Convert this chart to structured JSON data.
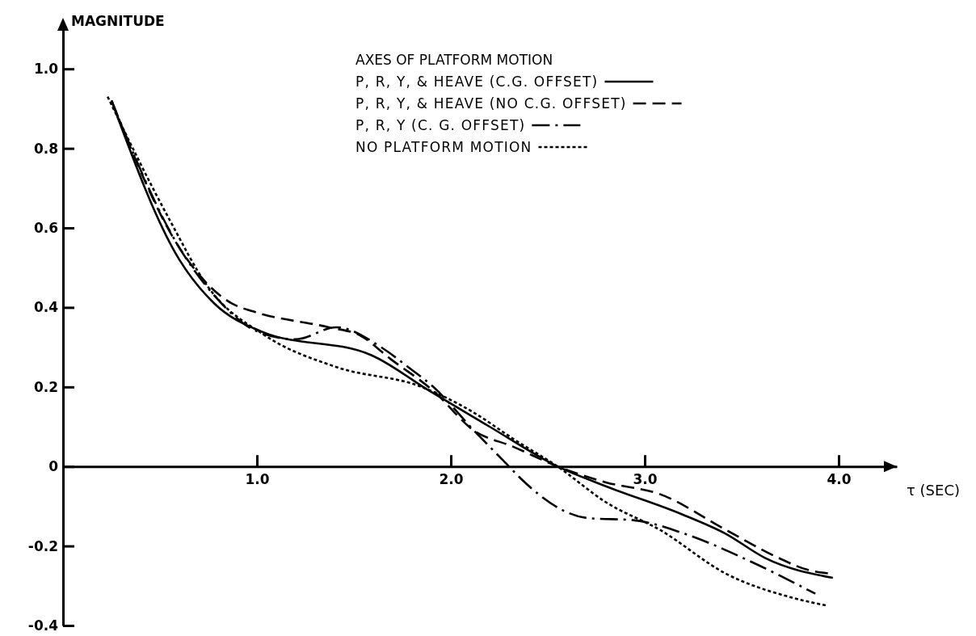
{
  "chart_data": {
    "type": "line",
    "xlabel": "τ (SEC)",
    "ylabel": "MAGNITUDE",
    "legend_title": "AXES OF PLATFORM MOTION",
    "legend": "top right",
    "grid": false,
    "marker": "none",
    "xlim": [
      0,
      4.3
    ],
    "ylim": [
      -0.4,
      1.1
    ],
    "xticks": [
      {
        "value": 1,
        "label": "1.0"
      },
      {
        "value": 2,
        "label": "2.0"
      },
      {
        "value": 3,
        "label": "3.0"
      },
      {
        "value": 4,
        "label": "4.0"
      }
    ],
    "yticks": [
      {
        "value": -0.4,
        "label": "-0.4"
      },
      {
        "value": -0.2,
        "label": "-0.2"
      },
      {
        "value": 0,
        "label": "0"
      },
      {
        "value": 0.2,
        "label": "0.2"
      },
      {
        "value": 0.4,
        "label": "0.4"
      },
      {
        "value": 0.6,
        "label": "0.6"
      },
      {
        "value": 0.8,
        "label": "0.8"
      },
      {
        "value": 1,
        "label": "1.0"
      }
    ],
    "series": [
      {
        "name": "P, R, Y, & HEAVE (C.G. OFFSET)",
        "color": "#000000",
        "line_style": "solid",
        "x": [
          0.25,
          0.6,
          0.78,
          1.02,
          1.59,
          1.89,
          2.2,
          2.55,
          2.8,
          3.19,
          3.42,
          3.62,
          3.97
        ],
        "values": [
          0.92,
          0.52,
          0.41,
          0.34,
          0.28,
          0.19,
          0.1,
          0,
          -0.05,
          -0.12,
          -0.17,
          -0.23,
          -0.28
        ]
      },
      {
        "name": "P, R, Y, & HEAVE (NO C.G. OFFSET)",
        "color": "#000000",
        "line_style": "dashed",
        "x": [
          0.25,
          0.6,
          0.87,
          0.98,
          1.37,
          1.53,
          1.69,
          1.91,
          2.12,
          2.32,
          2.55,
          2.8,
          3.08,
          3.42,
          3.69,
          3.84,
          3.97
        ],
        "values": [
          0.92,
          0.55,
          0.41,
          0.39,
          0.35,
          0.33,
          0.27,
          0.19,
          0.09,
          0.05,
          0,
          -0.04,
          -0.07,
          -0.16,
          -0.23,
          -0.26,
          -0.27
        ]
      },
      {
        "name": "P, R, Y (C. G. OFFSET)",
        "color": "#000000",
        "line_style": "dashdot",
        "x": [
          0.25,
          0.6,
          0.78,
          1.0,
          1.2,
          1.41,
          1.64,
          1.78,
          1.91,
          2.12,
          2.3,
          2.36,
          2.71,
          2.94,
          3.21,
          3.55,
          3.88
        ],
        "values": [
          0.92,
          0.55,
          0.43,
          0.34,
          0.32,
          0.35,
          0.3,
          0.25,
          0.2,
          0.09,
          0,
          -0.03,
          -0.13,
          -0.135,
          -0.17,
          -0.24,
          -0.32
        ]
      },
      {
        "name": "NO PLATFORM MOTION",
        "color": "#000000",
        "line_style": "dotted",
        "x": [
          0.23,
          0.55,
          0.75,
          1.04,
          1.41,
          1.85,
          2.12,
          2.32,
          2.55,
          2.8,
          3.08,
          3.42,
          3.76,
          3.94
        ],
        "values": [
          0.93,
          0.62,
          0.45,
          0.33,
          0.25,
          0.2,
          0.135,
          0.07,
          0,
          -0.09,
          -0.16,
          -0.27,
          -0.33,
          -0.35
        ]
      }
    ]
  }
}
